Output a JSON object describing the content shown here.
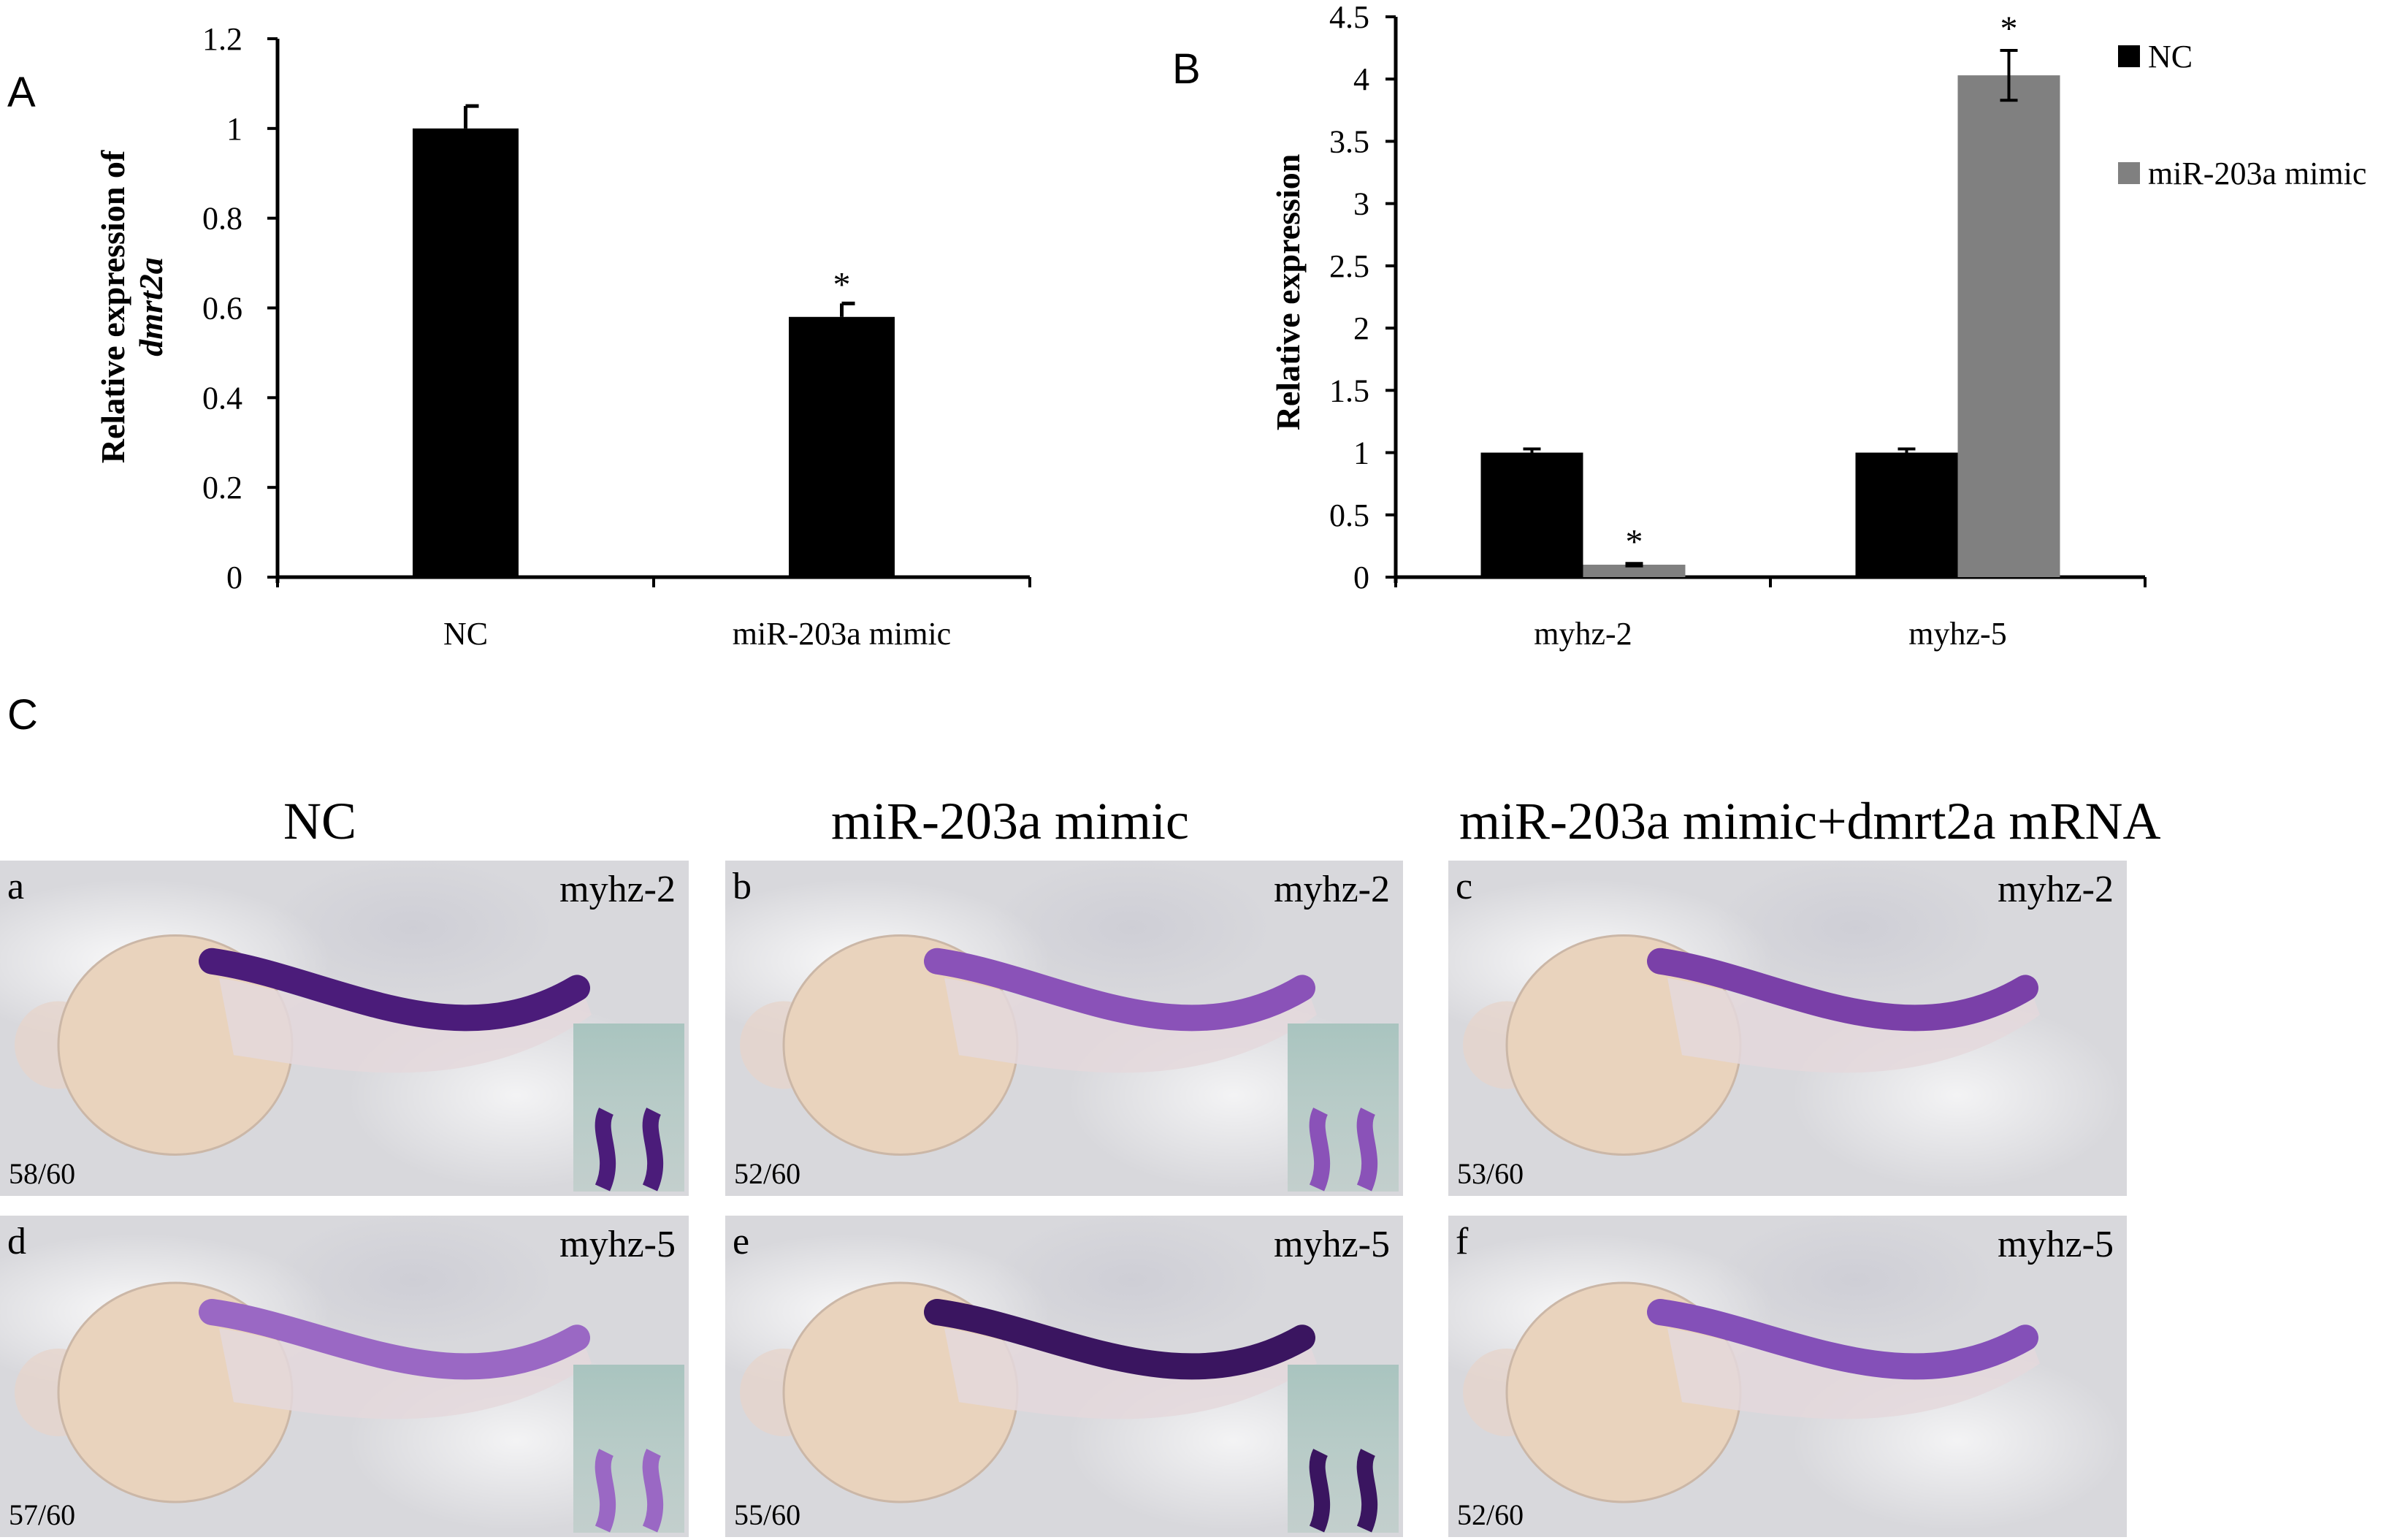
{
  "panels": {
    "a_letter": "A",
    "b_letter": "B",
    "c_letter": "C"
  },
  "chart_data": [
    {
      "type": "bar",
      "ylabel": "Relative expression of",
      "ylabel_italic": "dmrt2a",
      "categories": [
        "NC",
        "miR-203a mimic"
      ],
      "series": [
        {
          "values": [
            1.0,
            0.58
          ],
          "errors": [
            0.05,
            0.03
          ],
          "color": "#000000"
        }
      ],
      "significance": [
        "",
        "*"
      ],
      "ylim": [
        0,
        1.2
      ],
      "yticks": [
        "0",
        "0.2",
        "0.4",
        "0.6",
        "0.8",
        "1",
        "1.2"
      ],
      "grid": false
    },
    {
      "type": "bar",
      "ylabel": "Relative expression",
      "categories": [
        "myhz-2",
        "myhz-5"
      ],
      "series": [
        {
          "name": "NC",
          "values": [
            1.0,
            1.0
          ],
          "errors": [
            0.03,
            0.03
          ],
          "color": "#000000",
          "significance": [
            "",
            ""
          ]
        },
        {
          "name": "miR-203a mimic",
          "values": [
            0.1,
            4.03
          ],
          "errors": [
            0.01,
            0.2
          ],
          "color": "#808080",
          "significance": [
            "*",
            "*"
          ]
        }
      ],
      "ylim": [
        0,
        4.5
      ],
      "yticks": [
        "0",
        "0.5",
        "1",
        "1.5",
        "2",
        "2.5",
        "3",
        "3.5",
        "4",
        "4.5"
      ],
      "legend_position": "top-right",
      "grid": false
    }
  ],
  "embryos": {
    "columns": [
      "NC",
      "miR-203a mimic",
      "miR-203a mimic+dmrt2a mRNA"
    ],
    "panels": [
      {
        "letter": "a",
        "marker": "myhz-2",
        "count": "58/60",
        "stain": "#4b1c7a",
        "inset": true
      },
      {
        "letter": "b",
        "marker": "myhz-2",
        "count": "52/60",
        "stain": "#8a52b8",
        "inset": true
      },
      {
        "letter": "c",
        "marker": "myhz-2",
        "count": "53/60",
        "stain": "#7a40a8",
        "inset": false
      },
      {
        "letter": "d",
        "marker": "myhz-5",
        "count": "57/60",
        "stain": "#9a68c4",
        "inset": true
      },
      {
        "letter": "e",
        "marker": "myhz-5",
        "count": "55/60",
        "stain": "#3a1560",
        "inset": true
      },
      {
        "letter": "f",
        "marker": "myhz-5",
        "count": "52/60",
        "stain": "#8450b8",
        "inset": false
      }
    ]
  }
}
